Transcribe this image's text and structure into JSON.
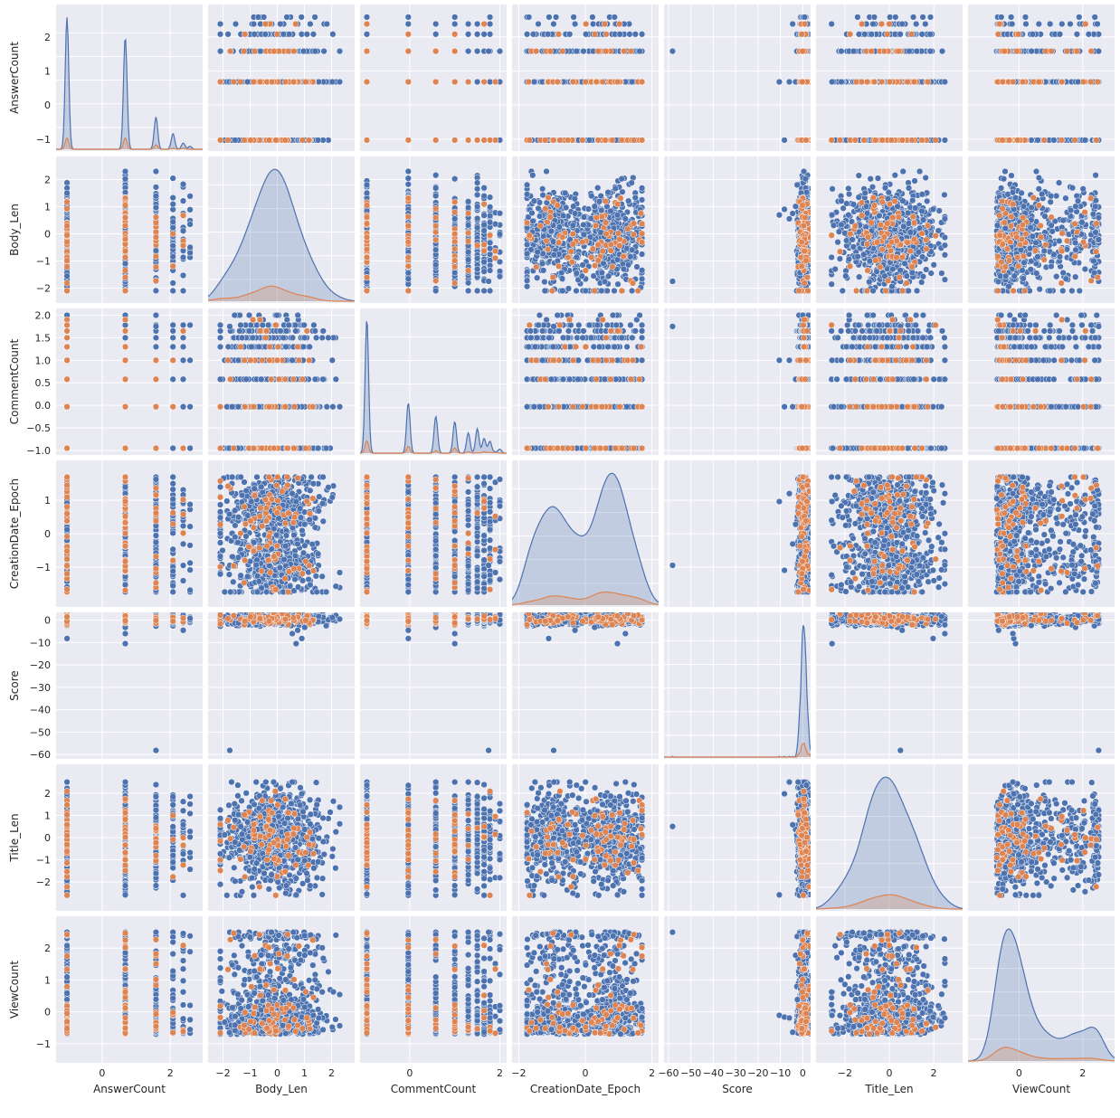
{
  "chart_data": {
    "type": "pairplot",
    "variables": [
      {
        "name": "AnswerCount",
        "range": [
          -1.35,
          2.95
        ],
        "ticks": [
          -1,
          0,
          1,
          2
        ],
        "tick_labels": [
          "−1",
          "0",
          "1",
          "2"
        ]
      },
      {
        "name": "Body_Len",
        "range": [
          -2.55,
          2.85
        ],
        "ticks": [
          -2,
          -1,
          0,
          1,
          2
        ],
        "tick_labels": [
          "−2",
          "−1",
          "0",
          "1",
          "2"
        ]
      },
      {
        "name": "CommentCount",
        "range": [
          -1.1,
          2.15
        ],
        "ticks": [
          -1.0,
          -0.5,
          0.0,
          0.5,
          1.0,
          1.5,
          2.0
        ],
        "tick_labels": [
          "−1.0",
          "−0.5",
          "0.0",
          "0.5",
          "1.0",
          "1.5",
          "2.0"
        ]
      },
      {
        "name": "CreationDate_Epoch",
        "range": [
          -2.2,
          2.2
        ],
        "ticks": [
          -1,
          0,
          1
        ],
        "tick_labels": [
          "−1",
          "0",
          "1"
        ]
      },
      {
        "name": "Score",
        "range": [
          -62,
          3.5
        ],
        "ticks": [
          -60,
          -50,
          -40,
          -30,
          -20,
          -10,
          0
        ],
        "tick_labels": [
          "−60",
          "−50",
          "−40",
          "−30",
          "−20",
          "−10",
          "0"
        ]
      },
      {
        "name": "Title_Len",
        "range": [
          -3.3,
          3.3
        ],
        "ticks": [
          -2,
          -1,
          0,
          1,
          2
        ],
        "tick_labels": [
          "−2",
          "−1",
          "0",
          "1",
          "2"
        ]
      },
      {
        "name": "ViewCount",
        "range": [
          -1.6,
          3.0
        ],
        "ticks": [
          -1,
          0,
          1,
          2
        ],
        "tick_labels": [
          "−1",
          "0",
          "1",
          "2"
        ]
      }
    ],
    "x_tick_overrides": {
      "AnswerCount": {
        "ticks": [
          0,
          2
        ],
        "tick_labels": [
          "0",
          "2"
        ]
      },
      "CommentCount": {
        "ticks": [
          0,
          2
        ],
        "tick_labels": [
          "0",
          "2"
        ]
      },
      "CreationDate_Epoch": {
        "ticks": [
          -2,
          0,
          2
        ],
        "tick_labels": [
          "−2",
          "0",
          "2"
        ]
      },
      "Title_Len": {
        "ticks": [
          -2,
          0,
          2
        ],
        "tick_labels": [
          "−2",
          "0",
          "2"
        ]
      },
      "ViewCount": {
        "ticks": [
          0,
          2
        ],
        "tick_labels": [
          "0",
          "2"
        ]
      }
    },
    "discrete_levels": {
      "AnswerCount": [
        -1.03,
        0.68,
        1.58,
        2.08,
        2.38,
        2.58
      ],
      "CommentCount": [
        -0.95,
        -0.03,
        0.58,
        1.0,
        1.3,
        1.5,
        1.65,
        1.78,
        1.9,
        2.0
      ]
    },
    "score_outliers": [
      -58.2,
      -10.5,
      -8.2,
      -6.0,
      -4.5
    ],
    "hue_series": [
      {
        "color": "#4c72b0",
        "share": 0.93
      },
      {
        "color": "#dd8452",
        "share": 0.07
      }
    ],
    "diagonal": "kde",
    "off_diagonal": "scatter",
    "background": "#eaeaf2",
    "grid": true
  }
}
